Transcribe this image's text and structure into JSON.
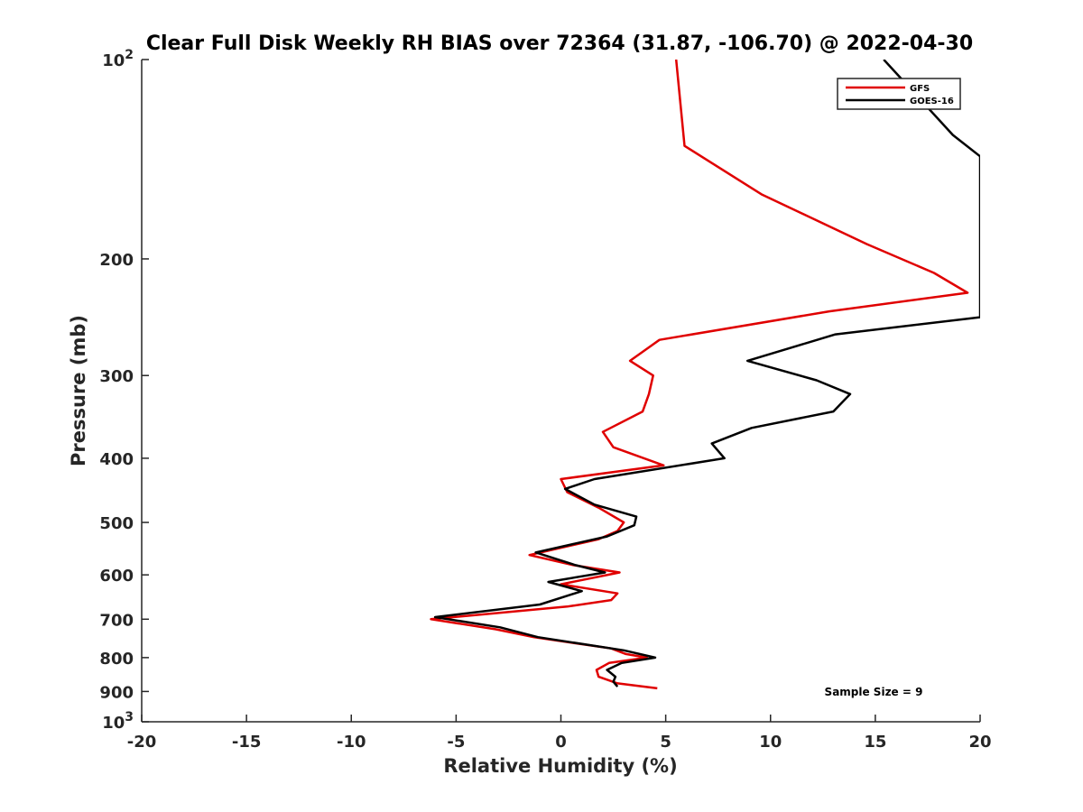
{
  "chart_data": {
    "type": "line",
    "title": "Clear Full Disk Weekly RH BIAS over 72364 (31.87, -106.70) @ 2022-04-30",
    "xlabel": "Relative Humidity (%)",
    "ylabel": "Pressure (mb)",
    "xlim": [
      -20,
      20
    ],
    "ylim": [
      100,
      1000
    ],
    "y_scale": "log",
    "y_reversed": true,
    "grid": false,
    "legend_position": "top-right",
    "x_ticks": [
      {
        "v": -20,
        "label": "-20"
      },
      {
        "v": -15,
        "label": "-15"
      },
      {
        "v": -10,
        "label": "-10"
      },
      {
        "v": -5,
        "label": "-5"
      },
      {
        "v": 0,
        "label": "0"
      },
      {
        "v": 5,
        "label": "5"
      },
      {
        "v": 10,
        "label": "10"
      },
      {
        "v": 15,
        "label": "15"
      },
      {
        "v": 20,
        "label": "20"
      }
    ],
    "y_ticks": [
      {
        "v": 100,
        "base": "10",
        "exp": "2"
      },
      {
        "v": 200,
        "label": "200"
      },
      {
        "v": 300,
        "label": "300"
      },
      {
        "v": 400,
        "label": "400"
      },
      {
        "v": 500,
        "label": "500"
      },
      {
        "v": 600,
        "label": "600"
      },
      {
        "v": 700,
        "label": "700"
      },
      {
        "v": 800,
        "label": "800"
      },
      {
        "v": 900,
        "label": "900"
      },
      {
        "v": 1000,
        "base": "10",
        "exp": "3"
      }
    ],
    "series": [
      {
        "name": "GFS",
        "color": "#e00000",
        "points": [
          [
            5.5,
            100
          ],
          [
            5.9,
            135
          ],
          [
            9.6,
            160
          ],
          [
            14.6,
            190
          ],
          [
            17.8,
            210
          ],
          [
            19.4,
            225
          ],
          [
            12.8,
            240
          ],
          [
            4.7,
            265
          ],
          [
            3.3,
            285
          ],
          [
            4.4,
            300
          ],
          [
            4.2,
            320
          ],
          [
            3.9,
            340
          ],
          [
            2.0,
            365
          ],
          [
            2.5,
            385
          ],
          [
            4.9,
            410
          ],
          [
            0.0,
            430
          ],
          [
            0.3,
            450
          ],
          [
            1.8,
            475
          ],
          [
            3.0,
            500
          ],
          [
            2.7,
            515
          ],
          [
            1.8,
            530
          ],
          [
            -1.5,
            560
          ],
          [
            0.6,
            580
          ],
          [
            2.8,
            595
          ],
          [
            0.0,
            620
          ],
          [
            2.7,
            640
          ],
          [
            2.4,
            655
          ],
          [
            0.3,
            670
          ],
          [
            -6.2,
            700
          ],
          [
            -3.1,
            725
          ],
          [
            -1.3,
            745
          ],
          [
            2.4,
            775
          ],
          [
            3.1,
            790
          ],
          [
            4.1,
            800
          ],
          [
            2.3,
            815
          ],
          [
            1.7,
            835
          ],
          [
            1.8,
            855
          ],
          [
            2.7,
            875
          ],
          [
            4.6,
            890
          ]
        ]
      },
      {
        "name": "GOES-16",
        "color": "#000000",
        "points": [
          [
            15.4,
            100
          ],
          [
            18.7,
            130
          ],
          [
            20.0,
            140
          ],
          [
            20.0,
            245
          ],
          [
            13.1,
            260
          ],
          [
            8.9,
            285
          ],
          [
            12.2,
            305
          ],
          [
            13.8,
            320
          ],
          [
            13.0,
            340
          ],
          [
            9.1,
            360
          ],
          [
            7.2,
            380
          ],
          [
            7.8,
            400
          ],
          [
            1.6,
            430
          ],
          [
            0.2,
            445
          ],
          [
            1.6,
            470
          ],
          [
            3.6,
            490
          ],
          [
            3.5,
            505
          ],
          [
            2.2,
            525
          ],
          [
            -1.2,
            555
          ],
          [
            0.7,
            580
          ],
          [
            2.1,
            595
          ],
          [
            -0.6,
            615
          ],
          [
            1.0,
            635
          ],
          [
            -1.0,
            665
          ],
          [
            -6.0,
            695
          ],
          [
            -2.9,
            720
          ],
          [
            -1.1,
            745
          ],
          [
            3.0,
            780
          ],
          [
            4.5,
            800
          ],
          [
            2.9,
            815
          ],
          [
            2.2,
            835
          ],
          [
            2.6,
            855
          ],
          [
            2.5,
            870
          ],
          [
            2.7,
            885
          ]
        ]
      }
    ],
    "annotations": [
      "Sample Size = 9"
    ]
  }
}
